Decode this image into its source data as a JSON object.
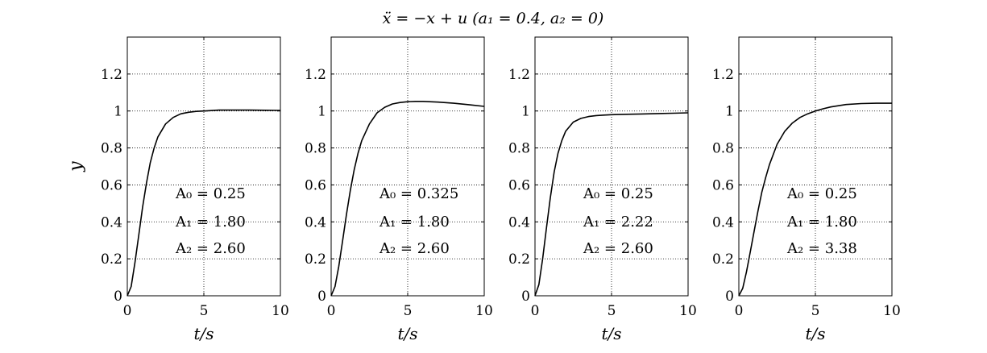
{
  "figure_title": "ẍ = −x + u    (a₁ = 0.4, a₂ = 0)",
  "chart_data": [
    {
      "type": "line",
      "xlabel": "t/s",
      "ylabel": "y",
      "xlim": [
        0,
        10
      ],
      "ylim": [
        0,
        1.4
      ],
      "xticks": [
        "0",
        "5",
        "10"
      ],
      "yticks": [
        "0",
        "0.2",
        "0.4",
        "0.6",
        "0.8",
        "1",
        "1.2"
      ],
      "grid": true,
      "annotations": [
        "A₀ = 0.25",
        "A₁ = 1.80",
        "A₂ = 2.60"
      ],
      "series": [
        {
          "x": [
            0,
            0.25,
            0.5,
            0.75,
            1.0,
            1.25,
            1.5,
            1.75,
            2.0,
            2.5,
            3.0,
            3.5,
            4.0,
            4.5,
            5.0,
            6.0,
            7.0,
            8.0,
            9.0,
            10.0
          ],
          "y": [
            0,
            0.05,
            0.18,
            0.33,
            0.48,
            0.61,
            0.72,
            0.8,
            0.86,
            0.93,
            0.965,
            0.985,
            0.993,
            0.998,
            1.0,
            1.005,
            1.005,
            1.005,
            1.004,
            1.003
          ]
        }
      ]
    },
    {
      "type": "line",
      "xlabel": "t/s",
      "ylabel": "",
      "xlim": [
        0,
        10
      ],
      "ylim": [
        0,
        1.4
      ],
      "xticks": [
        "0",
        "5",
        "10"
      ],
      "yticks": [
        "0",
        "0.2",
        "0.4",
        "0.6",
        "0.8",
        "1",
        "1.2"
      ],
      "grid": true,
      "annotations": [
        "A₀ = 0.325",
        "A₁ = 1.80",
        "A₂ = 2.60"
      ],
      "series": [
        {
          "x": [
            0,
            0.25,
            0.5,
            0.75,
            1.0,
            1.25,
            1.5,
            1.75,
            2.0,
            2.5,
            3.0,
            3.5,
            4.0,
            4.5,
            5.0,
            5.5,
            6.0,
            7.0,
            8.0,
            9.0,
            10.0
          ],
          "y": [
            0,
            0.05,
            0.16,
            0.3,
            0.44,
            0.57,
            0.68,
            0.77,
            0.84,
            0.93,
            0.99,
            1.02,
            1.038,
            1.046,
            1.05,
            1.052,
            1.052,
            1.048,
            1.042,
            1.034,
            1.025
          ]
        }
      ]
    },
    {
      "type": "line",
      "xlabel": "t/s",
      "ylabel": "",
      "xlim": [
        0,
        10
      ],
      "ylim": [
        0,
        1.4
      ],
      "xticks": [
        "0",
        "5",
        "10"
      ],
      "yticks": [
        "0",
        "0.2",
        "0.4",
        "0.6",
        "0.8",
        "1",
        "1.2"
      ],
      "grid": true,
      "annotations": [
        "A₀ = 0.25",
        "A₁ = 2.22",
        "A₂ = 2.60"
      ],
      "series": [
        {
          "x": [
            0,
            0.25,
            0.5,
            0.75,
            1.0,
            1.25,
            1.5,
            1.75,
            2.0,
            2.5,
            3.0,
            3.5,
            4.0,
            4.5,
            5.0,
            6.0,
            7.0,
            8.0,
            9.0,
            10.0
          ],
          "y": [
            0,
            0.06,
            0.2,
            0.37,
            0.53,
            0.67,
            0.77,
            0.84,
            0.89,
            0.94,
            0.96,
            0.97,
            0.975,
            0.978,
            0.98,
            0.982,
            0.984,
            0.986,
            0.988,
            0.99
          ]
        }
      ]
    },
    {
      "type": "line",
      "xlabel": "t/s",
      "ylabel": "",
      "xlim": [
        0,
        10
      ],
      "ylim": [
        0,
        1.4
      ],
      "xticks": [
        "0",
        "5",
        "10"
      ],
      "yticks": [
        "0",
        "0.2",
        "0.4",
        "0.6",
        "0.8",
        "1",
        "1.2"
      ],
      "grid": true,
      "annotations": [
        "A₀ = 0.25",
        "A₁ = 1.80",
        "A₂ = 3.38"
      ],
      "series": [
        {
          "x": [
            0,
            0.25,
            0.5,
            0.75,
            1.0,
            1.25,
            1.5,
            1.75,
            2.0,
            2.5,
            3.0,
            3.5,
            4.0,
            4.5,
            5.0,
            5.5,
            6.0,
            7.0,
            8.0,
            9.0,
            10.0
          ],
          "y": [
            0,
            0.04,
            0.13,
            0.24,
            0.35,
            0.46,
            0.56,
            0.64,
            0.71,
            0.82,
            0.89,
            0.935,
            0.965,
            0.985,
            1.0,
            1.012,
            1.022,
            1.035,
            1.04,
            1.042,
            1.042
          ]
        }
      ]
    }
  ]
}
